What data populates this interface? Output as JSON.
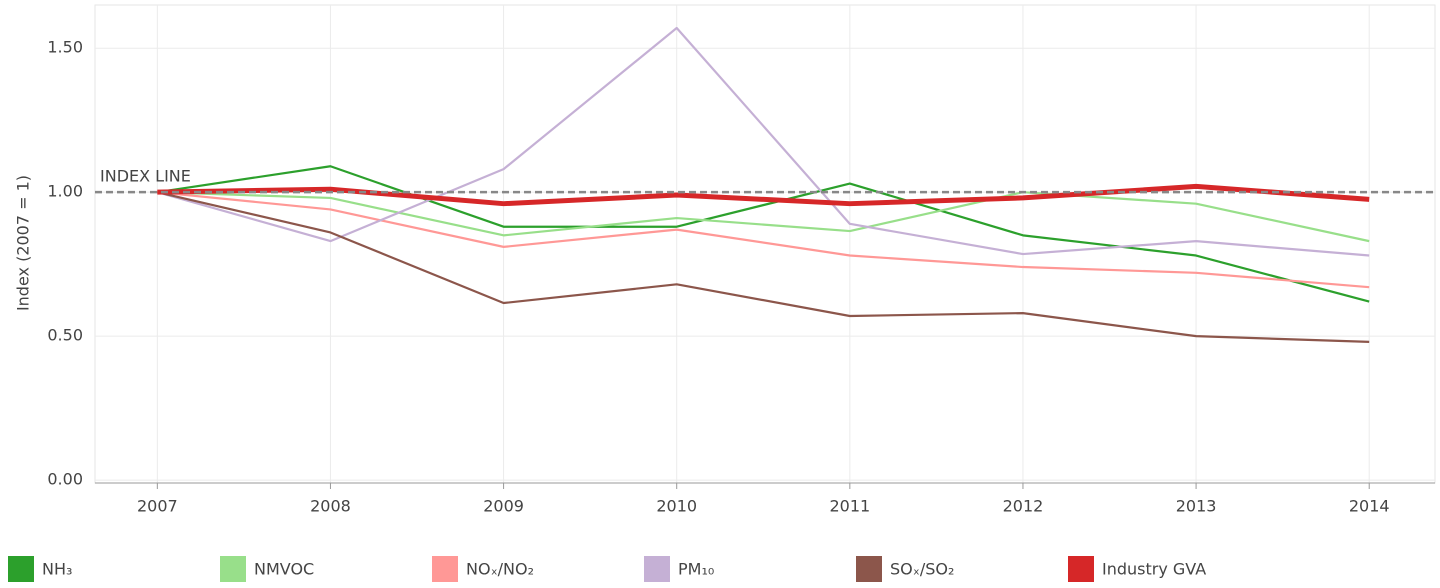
{
  "chart_data": {
    "type": "line",
    "y_label": "Index (2007 = 1)",
    "x": [
      2007,
      2008,
      2009,
      2010,
      2011,
      2012,
      2013,
      2014
    ],
    "xlim": [
      2006.64,
      2014.38
    ],
    "xticks": [
      2007,
      2008,
      2009,
      2010,
      2011,
      2012,
      2013,
      2014
    ],
    "ylim": [
      -0.01,
      1.65
    ],
    "yticks": [
      {
        "value": 0,
        "label": "0.00"
      },
      {
        "value": 0.5,
        "label": "0.50"
      },
      {
        "value": 1,
        "label": "1.00"
      },
      {
        "value": 1.5,
        "label": "1.50"
      }
    ],
    "grid": true,
    "index_line": {
      "value": 1,
      "label": "INDEX LINE"
    },
    "series": [
      {
        "name": "NH₃",
        "color": "#2ca02c",
        "values": [
          1.0,
          1.09,
          0.88,
          0.88,
          1.03,
          0.85,
          0.78,
          0.62
        ]
      },
      {
        "name": "NMVOC",
        "color": "#98df8a",
        "values": [
          1.0,
          0.98,
          0.85,
          0.91,
          0.865,
          1.0,
          0.96,
          0.83
        ]
      },
      {
        "name": "NOₓ/NO₂",
        "color": "#ff9896",
        "values": [
          1.0,
          0.94,
          0.81,
          0.87,
          0.78,
          0.74,
          0.72,
          0.67
        ]
      },
      {
        "name": "PM₁₀",
        "color": "#c5b0d5",
        "values": [
          1.0,
          0.83,
          1.08,
          1.57,
          0.89,
          0.785,
          0.83,
          0.78
        ]
      },
      {
        "name": "SOₓ/SO₂",
        "color": "#8c564b",
        "values": [
          1.0,
          0.86,
          0.615,
          0.68,
          0.57,
          0.58,
          0.5,
          0.48
        ]
      },
      {
        "name": "Industry GVA",
        "color": "#d62728",
        "values": [
          1.0,
          1.01,
          0.96,
          0.99,
          0.96,
          0.98,
          1.02,
          0.975
        ]
      }
    ]
  }
}
